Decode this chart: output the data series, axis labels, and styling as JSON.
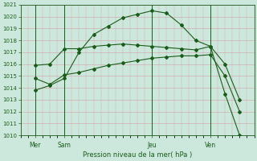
{
  "title": "Pression niveau de la mer( hPa )",
  "ylim": [
    1010,
    1021
  ],
  "yticks": [
    1010,
    1011,
    1012,
    1013,
    1014,
    1015,
    1016,
    1017,
    1018,
    1019,
    1020,
    1021
  ],
  "xtick_labels": [
    "Mer",
    "Sam",
    "Jeu",
    "Ven"
  ],
  "xtick_positions": [
    2,
    6,
    18,
    26
  ],
  "bg_color": "#cce8dc",
  "grid_color": "#d4a0a8",
  "line_color": "#1a5c1a",
  "line1_x": [
    2,
    4,
    6,
    8,
    10,
    12,
    14,
    16,
    18,
    20,
    22,
    24,
    26,
    28,
    30
  ],
  "line1_y": [
    1013.8,
    1014.2,
    1014.8,
    1017.0,
    1018.5,
    1019.2,
    1019.9,
    1020.2,
    1020.5,
    1020.3,
    1019.3,
    1018.0,
    1017.5,
    1013.5,
    1010.0
  ],
  "line2_x": [
    2,
    4,
    6,
    8,
    10,
    12,
    14,
    16,
    18,
    20,
    22,
    24,
    26,
    28,
    30
  ],
  "line2_y": [
    1015.9,
    1016.0,
    1017.3,
    1017.3,
    1017.5,
    1017.6,
    1017.7,
    1017.6,
    1017.5,
    1017.4,
    1017.3,
    1017.2,
    1017.5,
    1016.0,
    1013.0
  ],
  "line3_x": [
    2,
    4,
    6,
    8,
    10,
    12,
    14,
    16,
    18,
    20,
    22,
    24,
    26,
    28,
    30
  ],
  "line3_y": [
    1014.8,
    1014.3,
    1015.1,
    1015.3,
    1015.6,
    1015.9,
    1016.1,
    1016.3,
    1016.5,
    1016.6,
    1016.7,
    1016.7,
    1016.8,
    1015.0,
    1012.0
  ],
  "vline_positions": [
    2,
    6,
    18,
    26
  ],
  "xlim": [
    0,
    32
  ],
  "n_points": 15
}
